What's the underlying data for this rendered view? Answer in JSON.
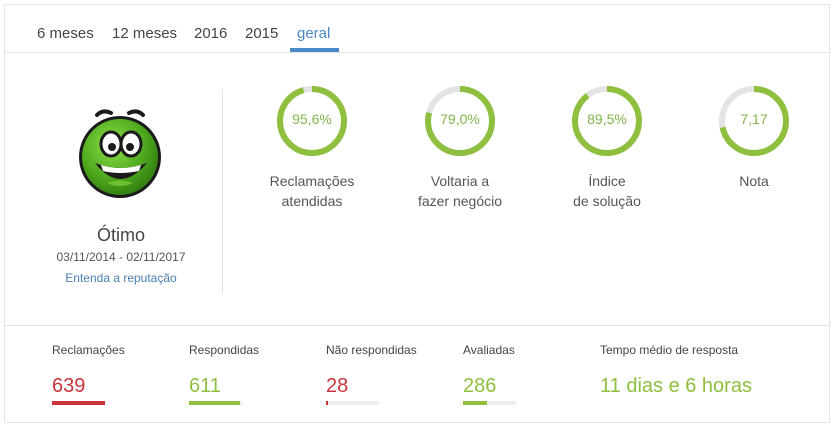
{
  "tabs": [
    {
      "label": "6 meses",
      "active": false
    },
    {
      "label": "12 meses",
      "active": false
    },
    {
      "label": "2016",
      "active": false
    },
    {
      "label": "2015",
      "active": false
    },
    {
      "label": "geral",
      "active": true
    }
  ],
  "reputation": {
    "icon": "smiley-face-icon",
    "label": "Ótimo",
    "period": "03/11/2014 - 02/11/2017",
    "link": "Entenda a reputação"
  },
  "gauges": [
    {
      "value_text": "95,6%",
      "fraction": 0.956,
      "label_line1": "Reclamações",
      "label_line2": "atendidas"
    },
    {
      "value_text": "79,0%",
      "fraction": 0.79,
      "label_line1": "Voltaria a",
      "label_line2": "fazer negócio"
    },
    {
      "value_text": "89,5%",
      "fraction": 0.895,
      "label_line1": "Índice",
      "label_line2": "de solução"
    },
    {
      "value_text": "7,17",
      "fraction": 0.717,
      "label_line1": "Nota",
      "label_line2": ""
    }
  ],
  "stats": [
    {
      "label": "Reclamações",
      "value": "639",
      "fill_fraction": 1.0,
      "color": "#c9343a"
    },
    {
      "label": "Respondidas",
      "value": "611",
      "fill_fraction": 0.956,
      "color": "#8fbf3f"
    },
    {
      "label": "Não respondidas",
      "value": "28",
      "fill_fraction": 0.044,
      "color": "#c9343a"
    },
    {
      "label": "Avaliadas",
      "value": "286",
      "fill_fraction": 0.45,
      "color": "#8fbf3f"
    }
  ],
  "response_time": {
    "label": "Tempo médio de resposta",
    "value": "11 dias e 6 horas",
    "color": "#8fbf3f"
  },
  "colors": {
    "accent": "#4a88c6",
    "gauge_fill": "#8fbf3f",
    "gauge_track": "#e4e4e4",
    "red": "#c9343a"
  }
}
